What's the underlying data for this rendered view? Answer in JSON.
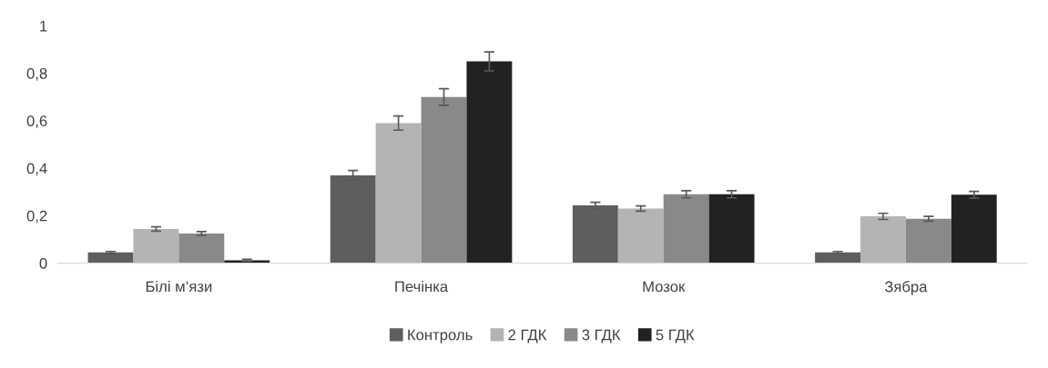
{
  "chart_data": {
    "type": "bar",
    "categories": [
      "Білі м’язи",
      "Печінка",
      "Мозок",
      "Зябра"
    ],
    "series": [
      {
        "name": "Контроль",
        "color": "#5e5e5e",
        "values": [
          0.045,
          0.37,
          0.243,
          0.045
        ],
        "errors": [
          0.004,
          0.02,
          0.013,
          0.004
        ]
      },
      {
        "name": "2 ГДК",
        "color": "#b4b4b4",
        "values": [
          0.144,
          0.59,
          0.23,
          0.197
        ],
        "errors": [
          0.009,
          0.03,
          0.011,
          0.013
        ]
      },
      {
        "name": "3 ГДК",
        "color": "#898989",
        "values": [
          0.125,
          0.7,
          0.29,
          0.187
        ],
        "errors": [
          0.008,
          0.035,
          0.015,
          0.01
        ]
      },
      {
        "name": "5 ГДК",
        "color": "#222222",
        "values": [
          0.012,
          0.85,
          0.29,
          0.288
        ],
        "errors": [
          0.004,
          0.04,
          0.015,
          0.014
        ]
      }
    ],
    "ylim": [
      0,
      1
    ],
    "yticks": [
      {
        "value": 0,
        "label": "0"
      },
      {
        "value": 0.2,
        "label": "0,2"
      },
      {
        "value": 0.4,
        "label": "0,4"
      },
      {
        "value": 0.6,
        "label": "0,6"
      },
      {
        "value": 0.8,
        "label": "0,8"
      },
      {
        "value": 1,
        "label": "1"
      }
    ],
    "grid": false,
    "legend": "bottom"
  }
}
